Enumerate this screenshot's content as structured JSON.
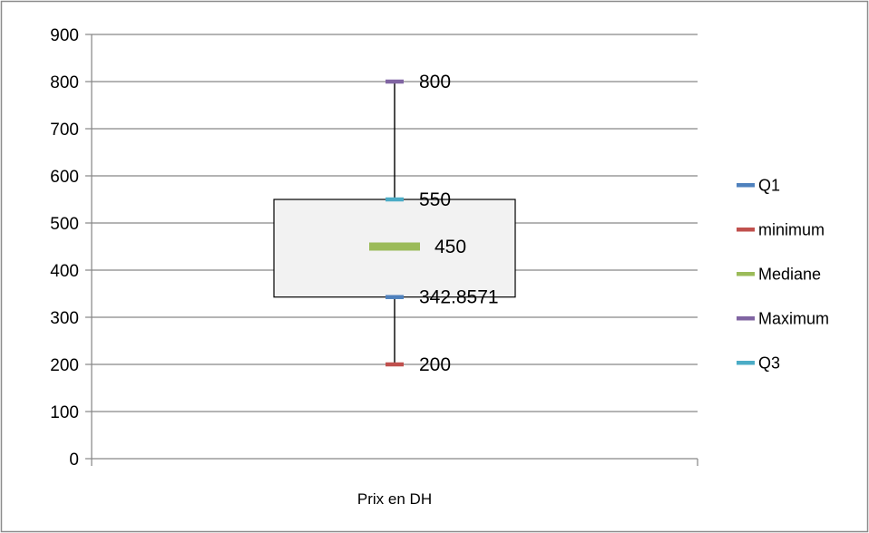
{
  "chart_data": {
    "type": "box",
    "title": "",
    "xlabel": "",
    "ylabel": "",
    "categories": [
      "Prix en DH"
    ],
    "ylim": [
      0,
      900
    ],
    "yticks": [
      0,
      100,
      200,
      300,
      400,
      500,
      600,
      700,
      800,
      900
    ],
    "grid": true,
    "legend_position": "right",
    "series": [
      {
        "name": "Q1",
        "value": 342.8571,
        "label": "342.8571",
        "color": "#4f81bd"
      },
      {
        "name": "minimum",
        "value": 200,
        "label": "200",
        "color": "#c0504d"
      },
      {
        "name": "Mediane",
        "value": 450,
        "label": "450",
        "color": "#9bbb59"
      },
      {
        "name": "Maximum",
        "value": 800,
        "label": "800",
        "color": "#8064a2"
      },
      {
        "name": "Q3",
        "value": 550,
        "label": "550",
        "color": "#4bacc6"
      }
    ]
  }
}
